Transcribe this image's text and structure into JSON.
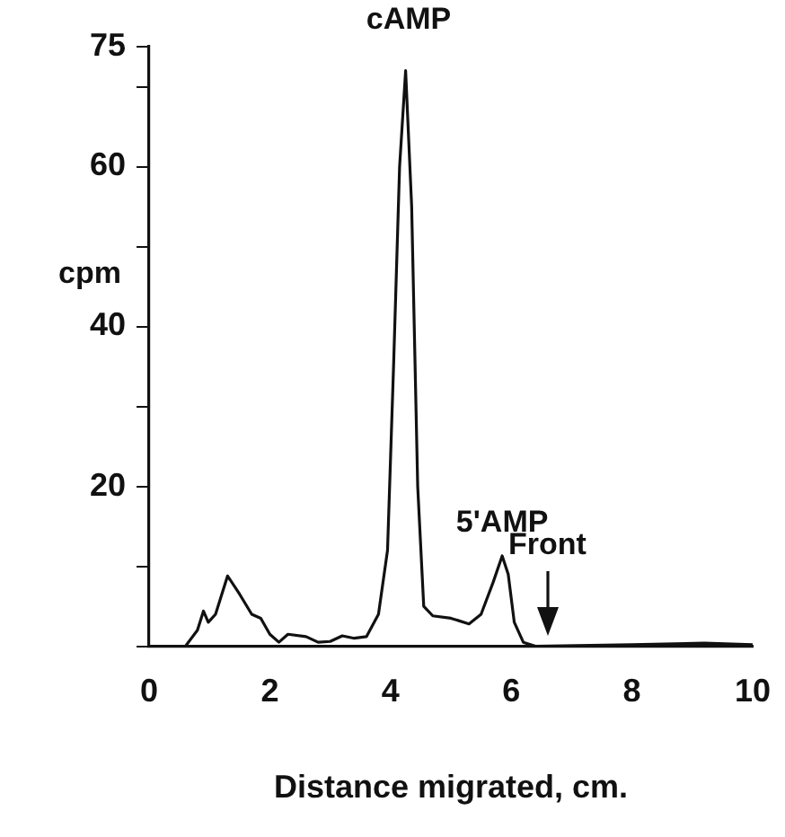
{
  "chart_data": {
    "type": "line",
    "xlabel": "Distance migrated, cm.",
    "ylabel": "cpm",
    "x": [
      0,
      0.6,
      0.8,
      0.9,
      0.98,
      1.1,
      1.3,
      1.5,
      1.7,
      1.85,
      2.0,
      2.15,
      2.3,
      2.6,
      2.8,
      3.0,
      3.2,
      3.4,
      3.6,
      3.8,
      3.95,
      4.05,
      4.15,
      4.25,
      4.35,
      4.45,
      4.55,
      4.7,
      5.0,
      5.3,
      5.5,
      5.7,
      5.85,
      5.95,
      6.05,
      6.2,
      6.4,
      8,
      9.2,
      10
    ],
    "series": [
      {
        "color": "#111111",
        "values": [
          0,
          0,
          2,
          4.4,
          3,
          4,
          8.8,
          6.5,
          4,
          3.5,
          1.5,
          0.5,
          1.5,
          1.2,
          0.5,
          0.6,
          1.3,
          1,
          1.2,
          4,
          12,
          35,
          60,
          72,
          55,
          20,
          5,
          3.8,
          3.5,
          2.8,
          4,
          8,
          11.3,
          9,
          3,
          0.5,
          0,
          0.2,
          0.4,
          0.2
        ]
      }
    ],
    "xlim": [
      0,
      10
    ],
    "xticks": [
      0,
      2,
      4,
      6,
      8,
      10
    ],
    "ylim": [
      0,
      75
    ],
    "yticks": [
      {
        "value": 0,
        "label": null
      },
      {
        "value": 10,
        "label": null
      },
      20,
      {
        "value": 30,
        "label": null
      },
      40,
      {
        "value": 50,
        "label": null
      },
      60,
      {
        "value": 70,
        "label": null
      },
      75
    ],
    "annotations": [
      {
        "text": "cAMP",
        "x": 4.3,
        "y": 72
      },
      {
        "text": "5'AMP",
        "x": 5.85,
        "y": 11.3
      },
      {
        "text": "Front",
        "x": 6.6,
        "y": 0
      }
    ],
    "grid": false,
    "legend": false,
    "marker": "none",
    "line_style": "solid"
  }
}
